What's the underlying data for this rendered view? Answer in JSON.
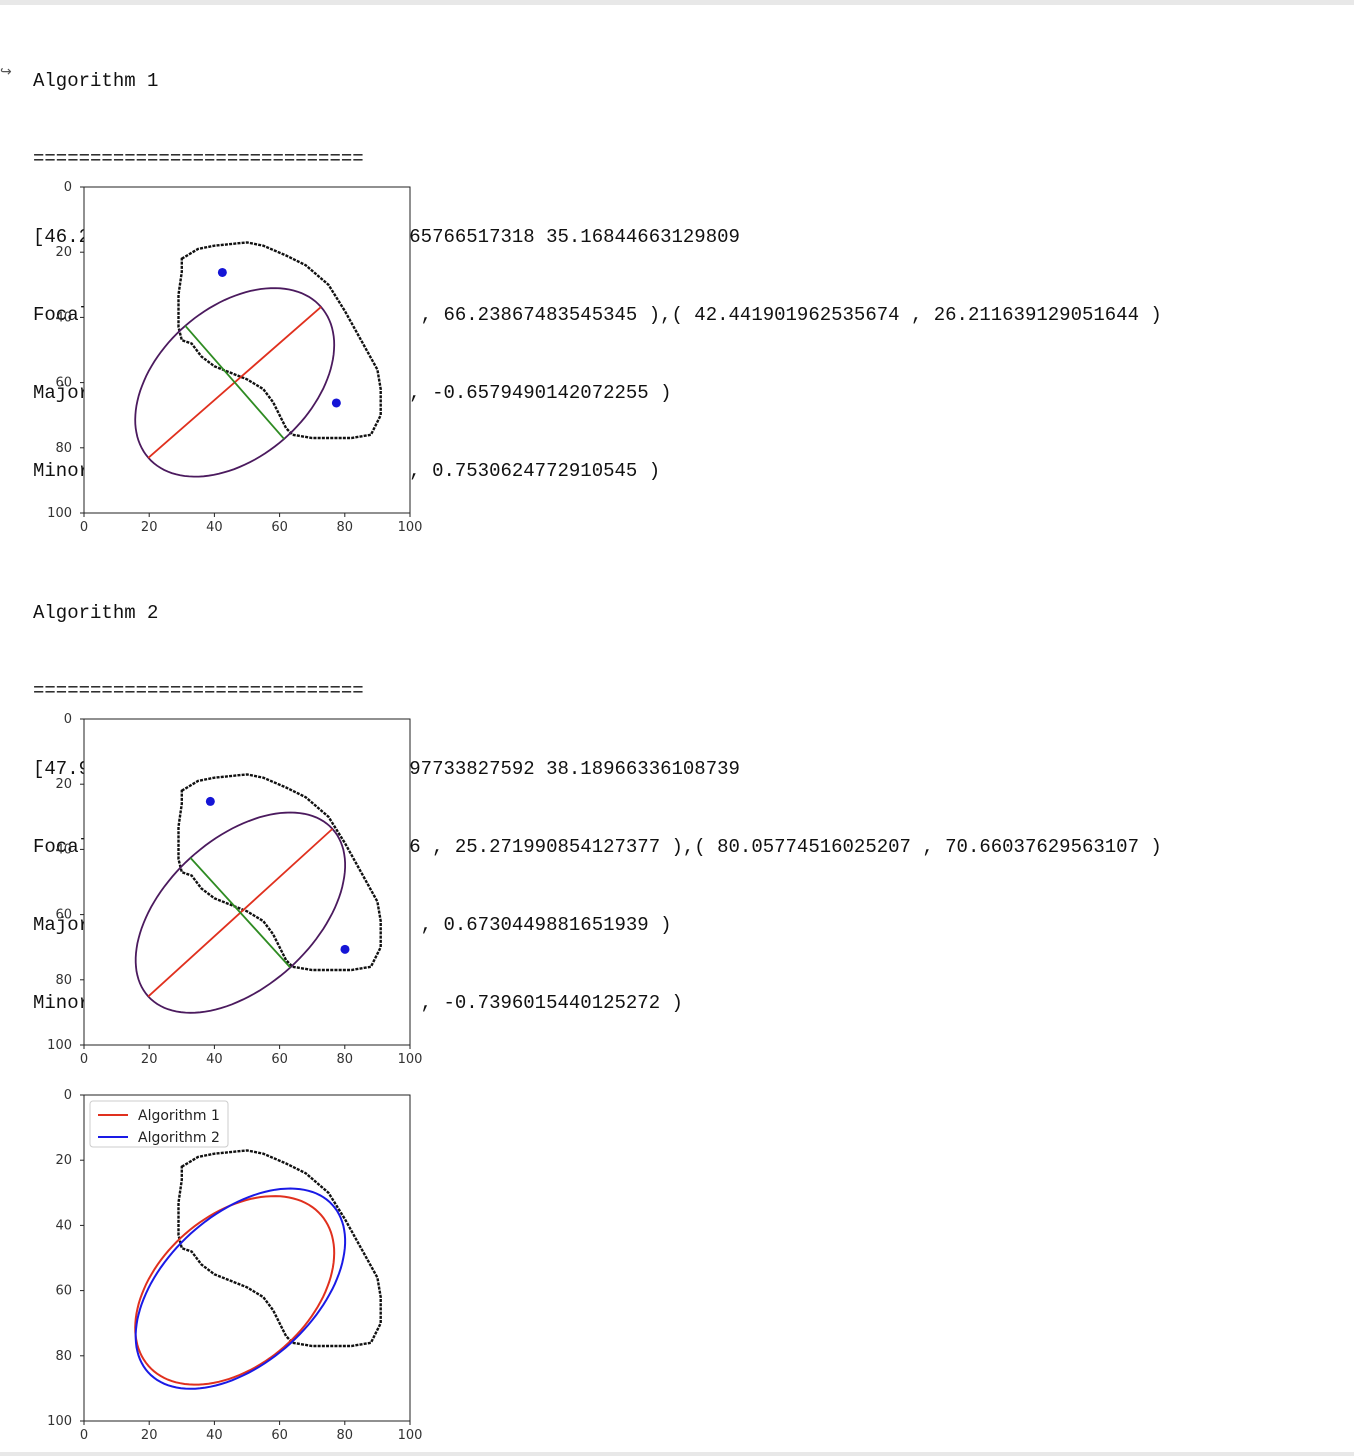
{
  "output_arrow": "↪",
  "blocks": [
    {
      "title": "Algorithm 1",
      "separator": "=============================",
      "line1": "[46.22515698 59.92766807] 23.033165766517318 35.16844663129809",
      "focal": "Focal points: ( 77.41343417776497 , 66.23867483545345 ),( 42.441901962535674 , 26.211639129051644 )",
      "major": "Major axis: ( 0.7530624772910545 , -0.6579490142072255 )",
      "minor": "Minor axis: ( 0.6579490142072255 , 0.7530624772910545 )"
    },
    {
      "title": "Algorithm 2",
      "separator": "=============================",
      "line1": "[47.96618357 59.4057971 ] 22.735897733827592 38.18966336108739",
      "focal": "Focal points: ( 38.753849042646486 , 25.271990854127377 ),( 80.05774516025207 , 70.66037629563107 )",
      "major": "Major axis: ( -0.7396015440125272 , 0.6730449881651939 )",
      "minor": "Minor axis: ( -0.6730449881651939 , -0.7396015440125272 )"
    }
  ],
  "chart_data": [
    {
      "type": "scatter",
      "title": "",
      "xlim": [
        0,
        100
      ],
      "ylim": [
        100,
        0
      ],
      "x_ticks": [
        "0",
        "20",
        "40",
        "60",
        "80",
        "100"
      ],
      "y_ticks": [
        "0",
        "20",
        "40",
        "60",
        "80",
        "100"
      ],
      "center": [
        46.22515698,
        59.92766807
      ],
      "ellipse": {
        "a": 35.16844663129809,
        "b": 23.033165766517318,
        "major_dir": [
          0.7530624772910545,
          -0.6579490142072255
        ]
      },
      "focal_points": [
        [
          77.41343417776497,
          66.23867483545345
        ],
        [
          42.441901962535674,
          26.211639129051644
        ]
      ],
      "colors": {
        "ellipse": "#4b1a5e",
        "major": "#e0301e",
        "minor": "#2e8b22",
        "focal": "#1515d6"
      }
    },
    {
      "type": "scatter",
      "title": "",
      "xlim": [
        0,
        100
      ],
      "ylim": [
        100,
        0
      ],
      "x_ticks": [
        "0",
        "20",
        "40",
        "60",
        "80",
        "100"
      ],
      "y_ticks": [
        "0",
        "20",
        "40",
        "60",
        "80",
        "100"
      ],
      "center": [
        47.96618357,
        59.4057971
      ],
      "ellipse": {
        "a": 38.18966336108739,
        "b": 22.735897733827592,
        "major_dir": [
          -0.7396015440125272,
          0.6730449881651939
        ]
      },
      "focal_points": [
        [
          38.753849042646486,
          25.271990854127377
        ],
        [
          80.05774516025207,
          70.66037629563107
        ]
      ],
      "colors": {
        "ellipse": "#4b1a5e",
        "major": "#e0301e",
        "minor": "#2e8b22",
        "focal": "#1515d6"
      }
    },
    {
      "type": "line",
      "title": "",
      "xlim": [
        0,
        100
      ],
      "ylim": [
        100,
        0
      ],
      "x_ticks": [
        "0",
        "20",
        "40",
        "60",
        "80",
        "100"
      ],
      "y_ticks": [
        "0",
        "20",
        "40",
        "60",
        "80",
        "100"
      ],
      "legend": "upper-left",
      "series": [
        {
          "name": "Algorithm 1",
          "color": "#e0301e",
          "center": [
            46.22515698,
            59.92766807
          ],
          "a": 35.16844663129809,
          "b": 23.033165766517318,
          "major_dir": [
            0.7530624772910545,
            -0.6579490142072255
          ]
        },
        {
          "name": "Algorithm 2",
          "color": "#1a1ae6",
          "center": [
            47.96618357,
            59.4057971
          ],
          "a": 38.18966336108739,
          "b": 22.735897733827592,
          "major_dir": [
            -0.7396015440125272,
            0.6730449881651939
          ]
        }
      ]
    }
  ],
  "contour": [
    [
      30,
      22
    ],
    [
      35,
      19
    ],
    [
      40,
      18
    ],
    [
      50,
      17
    ],
    [
      55,
      18
    ],
    [
      62,
      21
    ],
    [
      68,
      24
    ],
    [
      75,
      30
    ],
    [
      80,
      38
    ],
    [
      85,
      47
    ],
    [
      90,
      56
    ],
    [
      91,
      62
    ],
    [
      91,
      70
    ],
    [
      88,
      76
    ],
    [
      82,
      77
    ],
    [
      70,
      77
    ],
    [
      64,
      76
    ],
    [
      62,
      74
    ],
    [
      60,
      70
    ],
    [
      58,
      66
    ],
    [
      55,
      62
    ],
    [
      50,
      59
    ],
    [
      45,
      57
    ],
    [
      40,
      55
    ],
    [
      36,
      52
    ],
    [
      33,
      48
    ],
    [
      30,
      47
    ],
    [
      29,
      43
    ],
    [
      29,
      33
    ],
    [
      30,
      26
    ]
  ]
}
